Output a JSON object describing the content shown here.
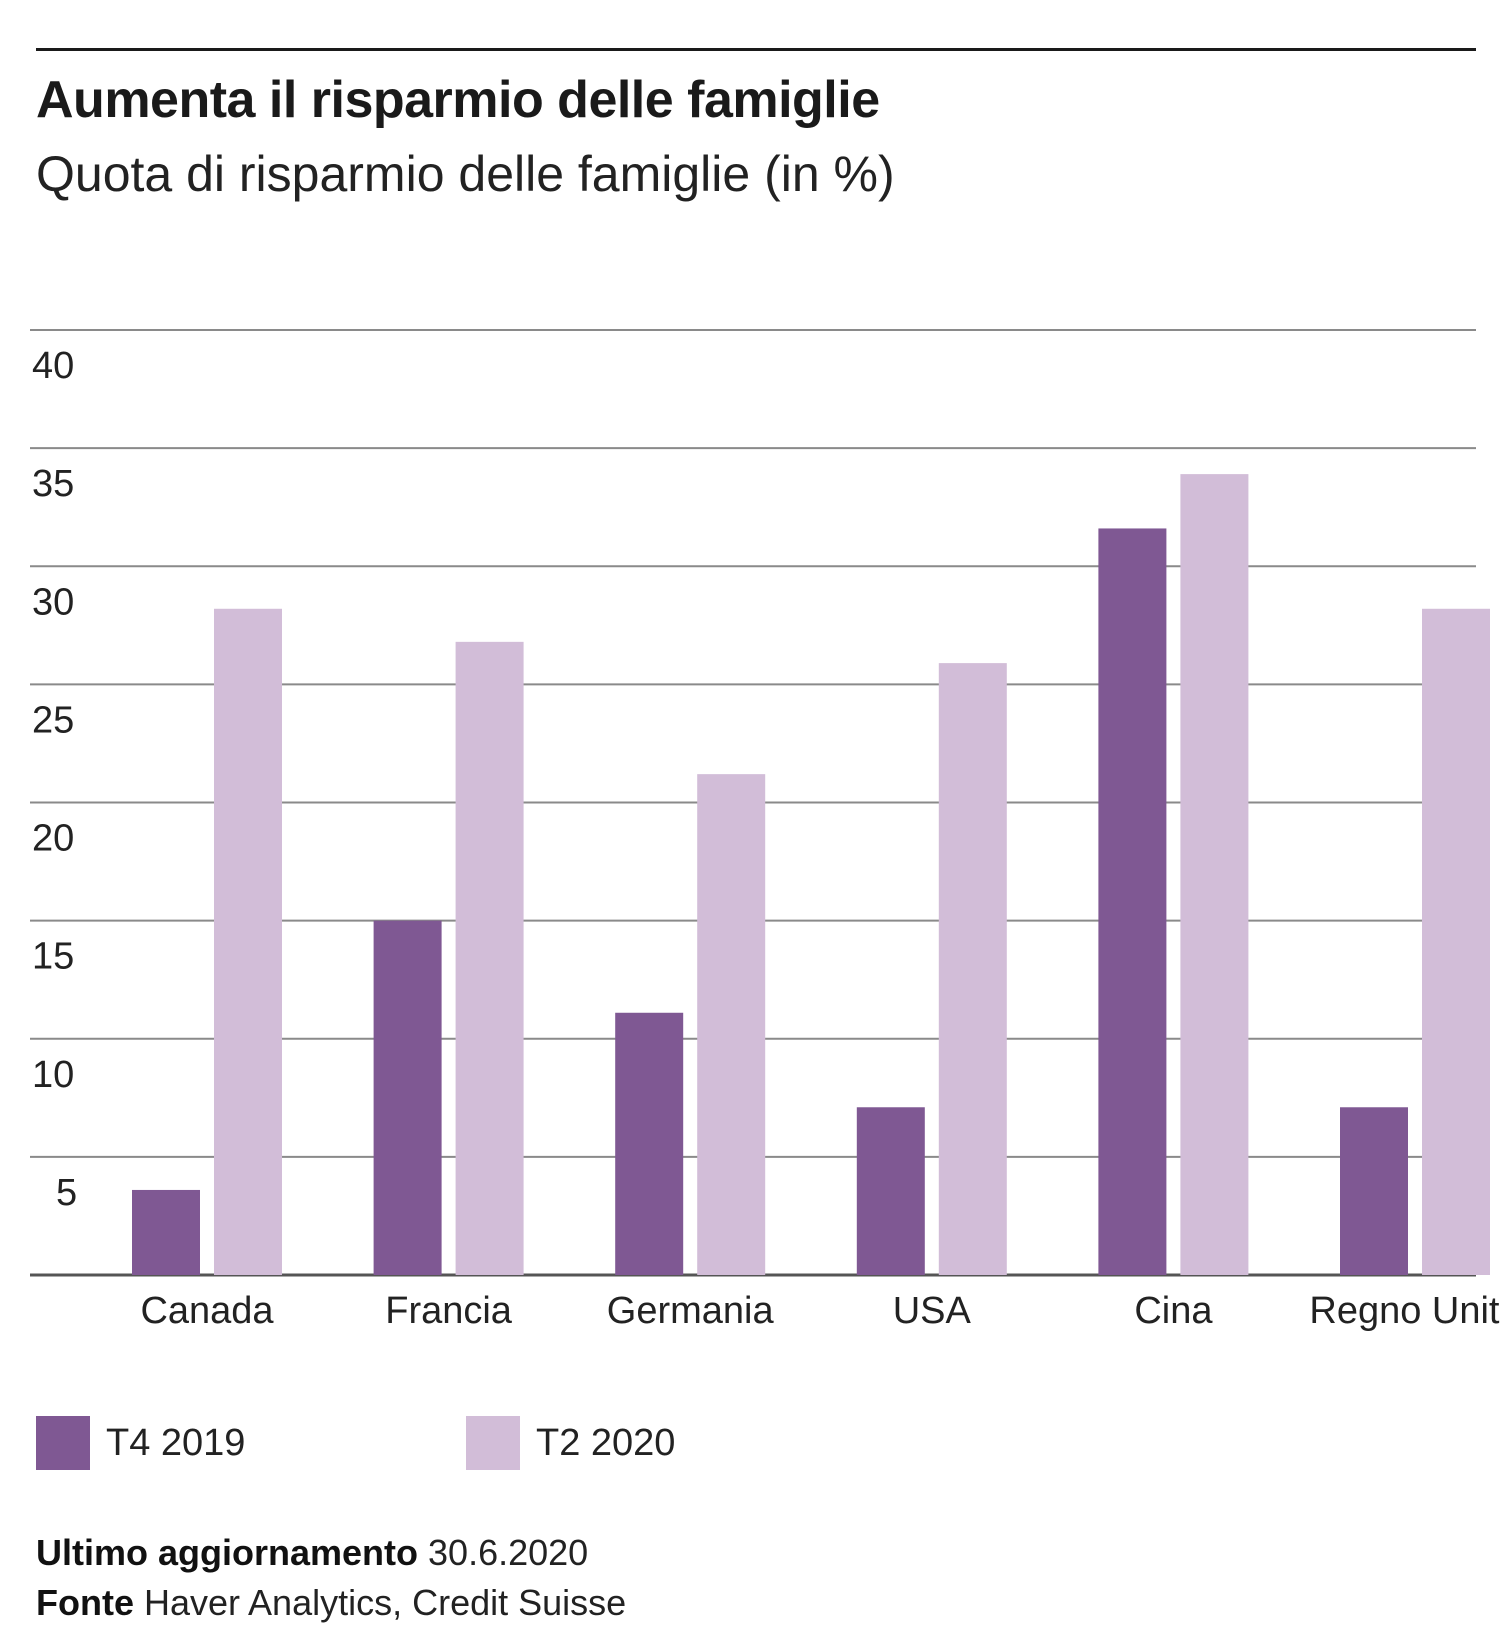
{
  "header": {
    "title": "Aumenta il risparmio delle famiglie",
    "subtitle": "Quota di risparmio delle famiglie (in %)"
  },
  "chart_data": {
    "type": "bar",
    "title": "Aumenta il risparmio delle famiglie",
    "subtitle": "Quota di risparmio delle famiglie (in %)",
    "categories": [
      "Canada",
      "Francia",
      "Germania",
      "USA",
      "Cina",
      "Regno Unito"
    ],
    "series": [
      {
        "name": "T4 2019",
        "color": "#7f5893",
        "values": [
          3.6,
          15.0,
          11.1,
          7.1,
          31.6,
          7.1
        ]
      },
      {
        "name": "T2 2020",
        "color": "#d2bdd8",
        "values": [
          28.2,
          26.8,
          21.2,
          25.9,
          33.9,
          28.2
        ]
      }
    ],
    "xlabel": "",
    "ylabel": "",
    "ylim": [
      0,
      40
    ],
    "yticks": [
      5,
      10,
      15,
      20,
      25,
      30,
      35,
      40
    ],
    "grid": true,
    "legend_position": "bottom-left"
  },
  "legend": {
    "items": [
      {
        "label": "T4 2019",
        "color": "#7f5893"
      },
      {
        "label": "T2 2020",
        "color": "#d2bdd8"
      }
    ]
  },
  "footer": {
    "update_label": "Ultimo aggiornamento",
    "update_value": "30.6.2020",
    "source_label": "Fonte",
    "source_value": "Haver Analytics, Credit Suisse"
  }
}
